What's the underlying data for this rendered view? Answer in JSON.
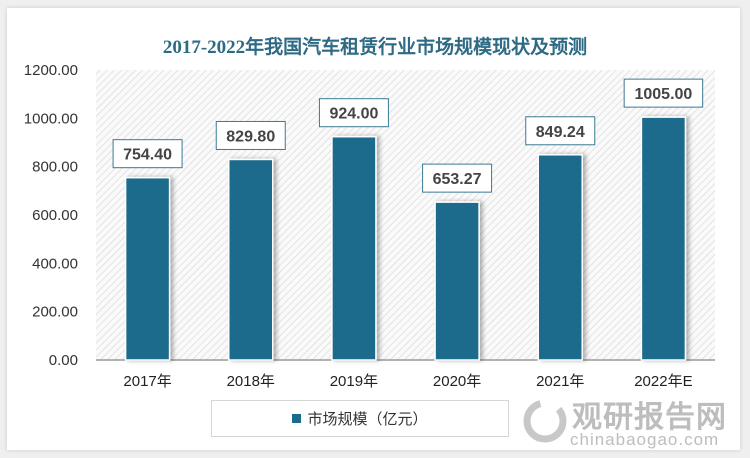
{
  "chart_data": {
    "type": "bar",
    "title": "2017-2022年我国汽车租赁行业市场规模现状及预测",
    "categories": [
      "2017年",
      "2018年",
      "2019年",
      "2020年",
      "2021年",
      "2022年E"
    ],
    "series": [
      {
        "name": "市场规模（亿元）",
        "values": [
          754.4,
          829.8,
          924.0,
          653.27,
          849.24,
          1005.0
        ]
      }
    ],
    "data_labels": [
      "754.40",
      "829.80",
      "924.00",
      "653.27",
      "849.24",
      "1005.00"
    ],
    "yticks": [
      "0.00",
      "200.00",
      "400.00",
      "600.00",
      "800.00",
      "1000.00",
      "1200.00"
    ],
    "ylim": [
      0,
      1200
    ],
    "legend_position": "bottom",
    "bar_color": "#1b6b8c",
    "grid": false
  },
  "watermark": {
    "cn": "观研报告网",
    "en": "chinabaogao.com"
  }
}
